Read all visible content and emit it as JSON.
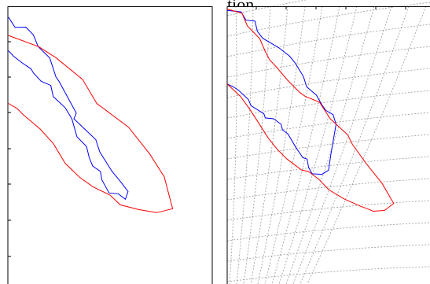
{
  "title_fragment": "tion",
  "colors": {
    "red": "#ff0000",
    "blue": "#0000ff",
    "axis": "#000000",
    "grid": "#999999",
    "background": "#ffffff"
  },
  "chart_data": [
    {
      "type": "line",
      "panel": "left",
      "grid": false,
      "series": [
        {
          "color": "#0000ff",
          "x": [
            0.3,
            3.5,
            8.8,
            12.5,
            14.8,
            20.5,
            23.5,
            25.0,
            33.5,
            32.3,
            43.0,
            45.0,
            51.0,
            55.0,
            58.8,
            57.5,
            54.0,
            49.5,
            46.0,
            45.3,
            41.5,
            39.8,
            38.5,
            33.8,
            31.3,
            28.0,
            22.2,
            21.0,
            16.3,
            12.5,
            11.3,
            7.0,
            2.8,
            0.3
          ],
          "y": [
            96.1,
            92.4,
            92.5,
            89.7,
            85.5,
            81.4,
            74.6,
            73.0,
            61.5,
            59.5,
            52.0,
            47.5,
            40.5,
            37.0,
            33.3,
            30.5,
            32.5,
            32.8,
            37.5,
            40.5,
            42.5,
            45.5,
            49.5,
            53.0,
            59.5,
            63.5,
            67.5,
            71.5,
            73.0,
            76.0,
            77.5,
            79.6,
            82.0,
            84.0
          ]
        },
        {
          "color": "#ff0000",
          "x": [
            0.3,
            15.0,
            23.5,
            36.5,
            43.5,
            59.0,
            69.5,
            76.5,
            80.6,
            72.8,
            64.0,
            55.0,
            50.0,
            41.6,
            35.0,
            28.0,
            22.3,
            15.8,
            7.5,
            4.5,
            0.3
          ],
          "y": [
            89.5,
            85.5,
            81.5,
            73.7,
            65.0,
            56.5,
            46.7,
            38.6,
            27.1,
            25.7,
            26.8,
            28.5,
            32.0,
            35.0,
            38.5,
            43.5,
            50.5,
            55.8,
            61.0,
            63.2,
            65.0
          ]
        }
      ]
    },
    {
      "type": "line",
      "panel": "right",
      "grid": true,
      "series": [
        {
          "color": "#0000ff",
          "x": [
            0.0,
            6.9,
            9.3,
            13.7,
            14.9,
            17.5,
            25.6,
            30.8,
            33.6,
            37.6,
            39.2,
            44.0,
            46.7,
            48.7,
            52.2,
            53.7,
            51.0,
            50.0,
            46.7,
            41.9,
            40.1,
            39.4,
            37.3,
            33.6,
            30.0,
            27.3,
            26.6,
            22.9,
            18.8,
            18.1,
            15.5,
            11.8,
            10.4,
            5.7,
            3.1,
            0.0
          ],
          "y": [
            98.5,
            98.0,
            95.0,
            94.7,
            91.0,
            88.5,
            85.0,
            82.0,
            79.5,
            74.7,
            71.0,
            68.0,
            64.5,
            62.5,
            61.0,
            57.5,
            46.2,
            41.0,
            39.5,
            39.7,
            42.0,
            45.0,
            45.5,
            49.5,
            54.0,
            55.5,
            57.5,
            59.5,
            59.8,
            61.3,
            62.5,
            64.2,
            66.5,
            69.7,
            71.0,
            72.0
          ]
        },
        {
          "color": "#ff0000",
          "x": [
            0.0,
            7.3,
            9.9,
            16.1,
            18.6,
            20.9,
            24.4,
            29.6,
            35.7,
            38.6,
            45.5,
            50.8,
            59.4,
            61.7,
            68.4,
            76.4,
            82.1,
            77.5,
            72.0,
            69.4,
            65.8,
            58.0,
            50.0,
            45.5,
            40.1,
            36.8,
            29.5,
            24.7,
            20.3,
            18.1,
            14.6,
            10.6,
            6.6,
            0.0
          ],
          "y": [
            99.0,
            97.5,
            93.0,
            88.3,
            84.0,
            80.8,
            78.0,
            73.5,
            69.0,
            67.5,
            65.5,
            59.5,
            53.7,
            50.3,
            43.5,
            36.2,
            29.0,
            26.5,
            26.2,
            27.0,
            28.0,
            30.5,
            34.0,
            37.5,
            40.5,
            41.0,
            45.0,
            48.5,
            52.5,
            55.0,
            59.0,
            63.5,
            67.5,
            72.0
          ]
        }
      ]
    }
  ]
}
